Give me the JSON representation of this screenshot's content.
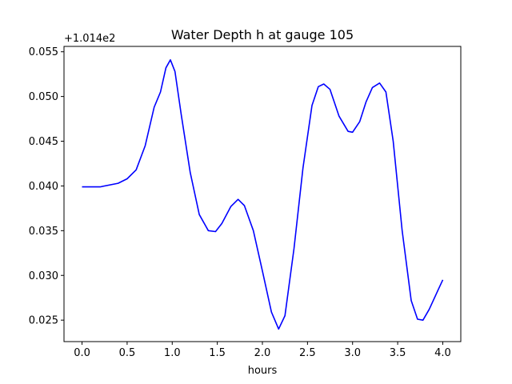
{
  "chart_data": {
    "type": "line",
    "title": "Water Depth h at gauge 105",
    "xlabel": "hours",
    "ylabel": "",
    "y_offset_label": "+1.014e2",
    "y_offset": 101.4,
    "xlim": [
      -0.2,
      4.2
    ],
    "ylim": [
      0.0226,
      0.0556
    ],
    "xticks": [
      0.0,
      0.5,
      1.0,
      1.5,
      2.0,
      2.5,
      3.0,
      3.5,
      4.0
    ],
    "xtick_labels": [
      "0.0",
      "0.5",
      "1.0",
      "1.5",
      "2.0",
      "2.5",
      "3.0",
      "3.5",
      "4.0"
    ],
    "yticks": [
      0.025,
      0.03,
      0.035,
      0.04,
      0.045,
      0.05,
      0.055
    ],
    "ytick_labels": [
      "0.025",
      "0.030",
      "0.035",
      "0.040",
      "0.045",
      "0.050",
      "0.055"
    ],
    "grid": false,
    "series": [
      {
        "color": "#0000ff",
        "x": [
          0.0,
          0.2,
          0.4,
          0.5,
          0.6,
          0.7,
          0.8,
          0.87,
          0.93,
          0.98,
          1.03,
          1.1,
          1.2,
          1.3,
          1.4,
          1.48,
          1.55,
          1.65,
          1.73,
          1.8,
          1.9,
          2.0,
          2.1,
          2.18,
          2.25,
          2.35,
          2.45,
          2.55,
          2.62,
          2.68,
          2.75,
          2.85,
          2.95,
          3.0,
          3.08,
          3.15,
          3.22,
          3.3,
          3.37,
          3.45,
          3.55,
          3.65,
          3.72,
          3.78,
          3.85,
          3.95,
          4.0
        ],
        "y": [
          0.0399,
          0.0399,
          0.0403,
          0.0408,
          0.0418,
          0.0445,
          0.0488,
          0.0505,
          0.0532,
          0.0541,
          0.0528,
          0.048,
          0.0415,
          0.0368,
          0.035,
          0.0349,
          0.0358,
          0.0377,
          0.0385,
          0.0378,
          0.035,
          0.0305,
          0.0259,
          0.024,
          0.0255,
          0.033,
          0.042,
          0.049,
          0.0511,
          0.0514,
          0.0508,
          0.0478,
          0.0461,
          0.046,
          0.0472,
          0.0494,
          0.051,
          0.0515,
          0.0505,
          0.045,
          0.035,
          0.0272,
          0.0251,
          0.025,
          0.0262,
          0.0284,
          0.0295
        ]
      }
    ]
  }
}
